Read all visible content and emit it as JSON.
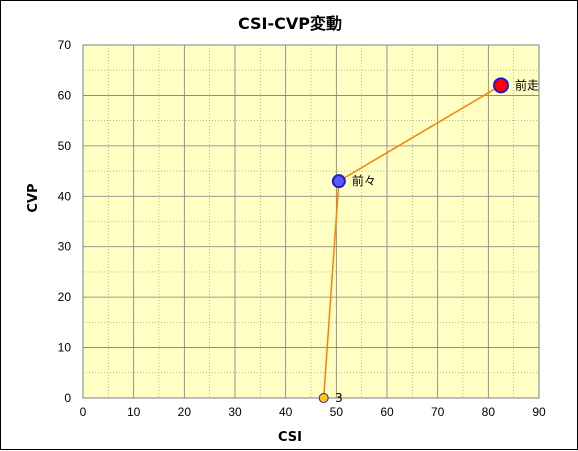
{
  "chart_data": {
    "type": "scatter",
    "title": "CSI-CVP変動",
    "xlabel": "CSI",
    "ylabel": "CVP",
    "xlim": [
      0,
      90
    ],
    "ylim": [
      0,
      70
    ],
    "x_ticks": [
      "0",
      "10",
      "20",
      "30",
      "40",
      "50",
      "60",
      "70",
      "80",
      "90"
    ],
    "y_ticks": [
      "0",
      "10",
      "20",
      "30",
      "40",
      "50",
      "60",
      "70"
    ],
    "grid": true,
    "series": [
      {
        "points": [
          {
            "x": 47.5,
            "y": 0,
            "label": "3"
          },
          {
            "x": 50.5,
            "y": 43,
            "label": "前々"
          },
          {
            "x": 82.5,
            "y": 62,
            "label": "前走"
          }
        ]
      }
    ],
    "colors": {
      "plot_background": "#ffffc4",
      "line": "#ff7f00",
      "point_latest_fill": "#ff0000",
      "point_prev_fill": "#5b5bff",
      "point_first_fill": "#ffcc00",
      "point_edge": "#1c1cd4"
    }
  }
}
